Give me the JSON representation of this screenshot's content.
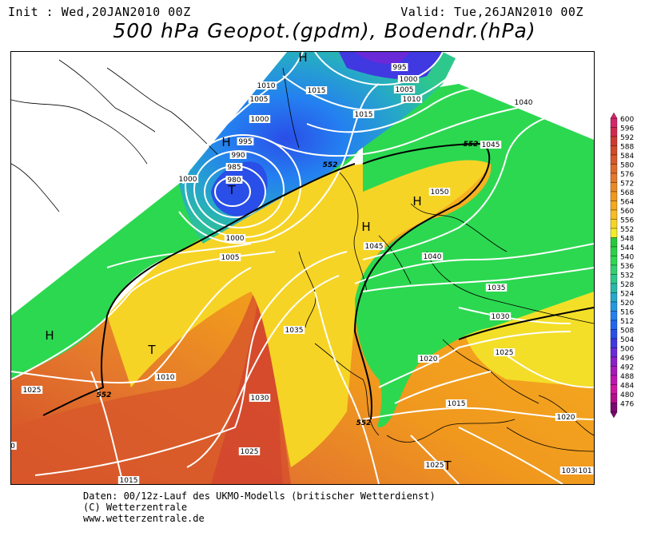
{
  "header": {
    "init": "Init : Wed,20JAN2010 00Z",
    "valid": "Valid: Tue,26JAN2010 00Z",
    "title": "500 hPa Geopot.(gpdm), Bodendr.(hPa)"
  },
  "legend": {
    "levels": [
      "600",
      "596",
      "592",
      "588",
      "584",
      "580",
      "576",
      "572",
      "568",
      "564",
      "560",
      "556",
      "552",
      "548",
      "544",
      "540",
      "536",
      "532",
      "528",
      "524",
      "520",
      "516",
      "512",
      "508",
      "504",
      "500",
      "496",
      "492",
      "488",
      "484",
      "480",
      "476"
    ],
    "colors": [
      "#d4266b",
      "#d2284e",
      "#cf3a30",
      "#d24a28",
      "#d8582a",
      "#de6a2a",
      "#e4782c",
      "#ea8a24",
      "#f0981e",
      "#f4a81e",
      "#f8bc24",
      "#f6d426",
      "#f2ec2a",
      "#28c83c",
      "#2ad048",
      "#2cd850",
      "#34d070",
      "#2ec88c",
      "#2ab8a8",
      "#26a8c8",
      "#2498e0",
      "#2480f0",
      "#2266f0",
      "#2a4ee8",
      "#4038e0",
      "#6a2ad8",
      "#8a1ec8",
      "#a818bc",
      "#c014b0",
      "#d014a0",
      "#b40c8c",
      "#7a0a70"
    ]
  },
  "map": {
    "isobar_labels": [
      "995",
      "1000",
      "1005",
      "1010",
      "1015",
      "1010",
      "1005",
      "1000",
      "995",
      "990",
      "985",
      "980",
      "1000",
      "1000",
      "1005",
      "1015",
      "1040",
      "1045",
      "1050",
      "1045",
      "1040",
      "1035",
      "1030",
      "1025",
      "1020",
      "1035",
      "1030",
      "1025",
      "1015",
      "1010",
      "1025",
      "1020",
      "1015",
      "1030",
      "1025",
      "1015",
      "1020",
      "101",
      "0"
    ],
    "pressure_centers": [
      "H",
      "H",
      "T",
      "H",
      "H",
      "H",
      "T",
      "T"
    ],
    "contour_labels_552": [
      "552",
      "552",
      "552",
      "552"
    ]
  },
  "footer": {
    "line1": "Daten: 00/12z-Lauf des UKMO-Modells (britischer Wetterdienst)",
    "line2": "(C) Wetterzentrale",
    "line3": "www.wetterzentrale.de"
  }
}
